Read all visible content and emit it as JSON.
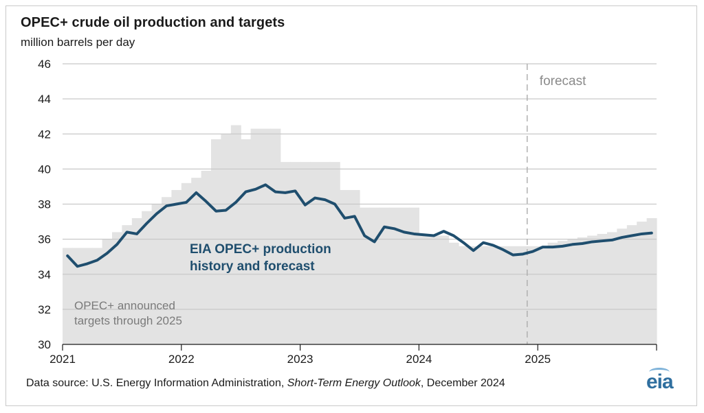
{
  "title": "OPEC+ crude oil production and targets",
  "subtitle": "million barrels per day",
  "source": {
    "prefix": "Data source: U.S. Energy Information Administration, ",
    "publication": "Short-Term Energy Outlook",
    "suffix": ", December 2024"
  },
  "logo_text": "eia",
  "colors": {
    "production_line": "#1f4e6e",
    "target_area": "#e3e3e3",
    "gridline": "#c8c8c8",
    "forecast_divider": "#b0b0b0"
  },
  "chart_data": {
    "type": "line",
    "ylim": [
      30,
      46
    ],
    "yticks": [
      30,
      32,
      34,
      36,
      38,
      40,
      42,
      44,
      46
    ],
    "xlim": [
      "2021-01",
      "2026-01"
    ],
    "xticks": [
      "2021",
      "2022",
      "2023",
      "2024",
      "2025"
    ],
    "grid": true,
    "forecast_start": "2024-12",
    "forecast_label": "forecast",
    "annotations": {
      "production_label": [
        "EIA OPEC+ production",
        "history and forecast"
      ],
      "targets_label": [
        "OPEC+ announced",
        "targets through 2025"
      ]
    },
    "series": [
      {
        "name": "EIA OPEC+ production history and forecast",
        "type": "line",
        "x": [
          "2021-01",
          "2021-02",
          "2021-03",
          "2021-04",
          "2021-05",
          "2021-06",
          "2021-07",
          "2021-08",
          "2021-09",
          "2021-10",
          "2021-11",
          "2021-12",
          "2022-01",
          "2022-02",
          "2022-03",
          "2022-04",
          "2022-05",
          "2022-06",
          "2022-07",
          "2022-08",
          "2022-09",
          "2022-10",
          "2022-11",
          "2022-12",
          "2023-01",
          "2023-02",
          "2023-03",
          "2023-04",
          "2023-05",
          "2023-06",
          "2023-07",
          "2023-08",
          "2023-09",
          "2023-10",
          "2023-11",
          "2023-12",
          "2024-01",
          "2024-02",
          "2024-03",
          "2024-04",
          "2024-05",
          "2024-06",
          "2024-07",
          "2024-08",
          "2024-09",
          "2024-10",
          "2024-11",
          "2024-12",
          "2025-01",
          "2025-02",
          "2025-03",
          "2025-04",
          "2025-05",
          "2025-06",
          "2025-07",
          "2025-08",
          "2025-09",
          "2025-10",
          "2025-11",
          "2025-12"
        ],
        "values": [
          35.05,
          34.45,
          34.6,
          34.8,
          35.2,
          35.7,
          36.4,
          36.3,
          36.9,
          37.45,
          37.9,
          38.0,
          38.1,
          38.65,
          38.15,
          37.6,
          37.65,
          38.1,
          38.7,
          38.85,
          39.1,
          38.7,
          38.65,
          38.75,
          37.95,
          38.35,
          38.25,
          38.0,
          37.2,
          37.3,
          36.2,
          35.85,
          36.7,
          36.6,
          36.4,
          36.3,
          36.25,
          36.2,
          36.45,
          36.2,
          35.8,
          35.35,
          35.8,
          35.65,
          35.4,
          35.1,
          35.15,
          35.3,
          35.55,
          35.55,
          35.6,
          35.7,
          35.75,
          35.85,
          35.9,
          35.95,
          36.1,
          36.2,
          36.3,
          36.35
        ]
      },
      {
        "name": "OPEC+ announced targets through 2025",
        "type": "area",
        "x": [
          "2021-01",
          "2021-02",
          "2021-03",
          "2021-04",
          "2021-05",
          "2021-06",
          "2021-07",
          "2021-08",
          "2021-09",
          "2021-10",
          "2021-11",
          "2021-12",
          "2022-01",
          "2022-02",
          "2022-03",
          "2022-04",
          "2022-05",
          "2022-06",
          "2022-07",
          "2022-08",
          "2022-09",
          "2022-10",
          "2022-11",
          "2022-12",
          "2023-01",
          "2023-02",
          "2023-03",
          "2023-04",
          "2023-05",
          "2023-06",
          "2023-07",
          "2023-08",
          "2023-09",
          "2023-10",
          "2023-11",
          "2023-12",
          "2024-01",
          "2024-02",
          "2024-03",
          "2024-04",
          "2024-05",
          "2024-06",
          "2024-07",
          "2024-08",
          "2024-09",
          "2024-10",
          "2024-11",
          "2024-12",
          "2025-01",
          "2025-02",
          "2025-03",
          "2025-04",
          "2025-05",
          "2025-06",
          "2025-07",
          "2025-08",
          "2025-09",
          "2025-10",
          "2025-11",
          "2025-12"
        ],
        "values": [
          35.5,
          35.5,
          35.5,
          35.5,
          36.0,
          36.4,
          36.8,
          37.2,
          37.6,
          38.0,
          38.4,
          38.8,
          39.2,
          39.5,
          39.9,
          41.7,
          42.0,
          42.5,
          41.7,
          42.3,
          42.3,
          42.3,
          40.4,
          40.4,
          40.4,
          40.4,
          40.4,
          40.4,
          38.8,
          38.8,
          37.8,
          37.8,
          37.8,
          37.8,
          37.8,
          37.8,
          36.2,
          36.2,
          36.2,
          35.8,
          35.6,
          35.6,
          35.6,
          35.6,
          35.6,
          35.6,
          35.6,
          35.6,
          35.6,
          35.8,
          35.9,
          36.0,
          36.1,
          36.2,
          36.3,
          36.4,
          36.6,
          36.8,
          37.0,
          37.2
        ]
      }
    ]
  }
}
